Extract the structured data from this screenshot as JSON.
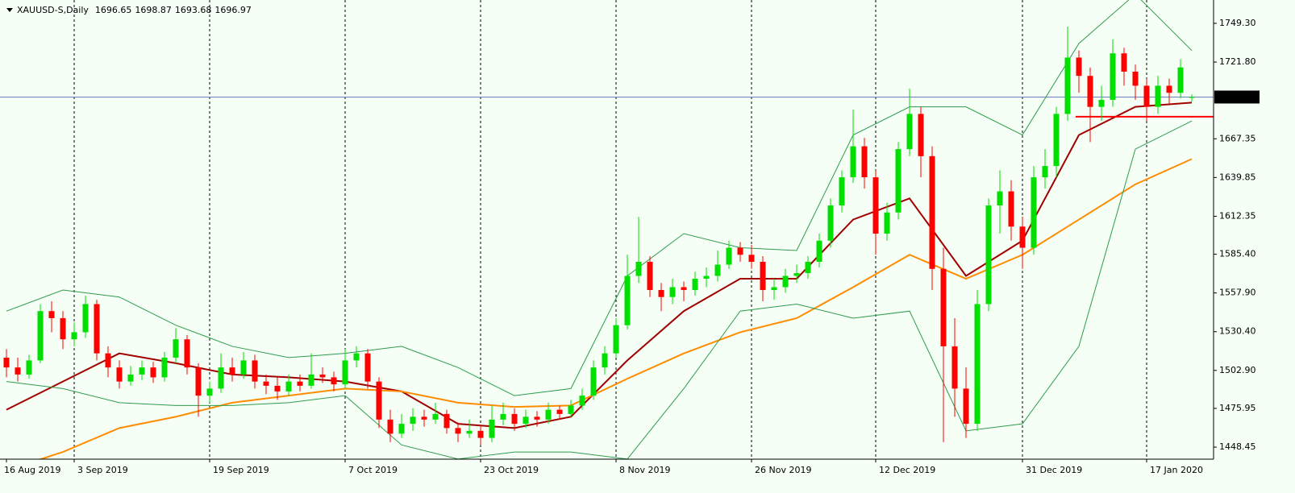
{
  "chart_data": {
    "type": "candlestick",
    "symbol": "XAUUSD-S,Daily",
    "ohlc": [
      [
        1512,
        1518,
        1498,
        1505
      ],
      [
        1505,
        1512,
        1495,
        1500
      ],
      [
        1500,
        1514,
        1497,
        1510
      ],
      [
        1510,
        1550,
        1508,
        1545
      ],
      [
        1545,
        1552,
        1530,
        1540
      ],
      [
        1540,
        1545,
        1518,
        1525
      ],
      [
        1525,
        1537,
        1520,
        1530
      ],
      [
        1530,
        1556,
        1526,
        1550
      ],
      [
        1550,
        1553,
        1510,
        1515
      ],
      [
        1515,
        1520,
        1498,
        1505
      ],
      [
        1505,
        1510,
        1490,
        1495
      ],
      [
        1495,
        1506,
        1492,
        1500
      ],
      [
        1500,
        1510,
        1496,
        1505
      ],
      [
        1505,
        1509,
        1494,
        1498
      ],
      [
        1498,
        1516,
        1495,
        1512
      ],
      [
        1512,
        1533,
        1508,
        1525
      ],
      [
        1525,
        1528,
        1500,
        1505
      ],
      [
        1505,
        1508,
        1470,
        1485
      ],
      [
        1485,
        1495,
        1480,
        1490
      ],
      [
        1490,
        1515,
        1487,
        1505
      ],
      [
        1505,
        1512,
        1495,
        1500
      ],
      [
        1500,
        1516,
        1497,
        1510
      ],
      [
        1510,
        1514,
        1490,
        1495
      ],
      [
        1495,
        1500,
        1486,
        1492
      ],
      [
        1492,
        1498,
        1482,
        1488
      ],
      [
        1488,
        1500,
        1485,
        1495
      ],
      [
        1495,
        1500,
        1488,
        1492
      ],
      [
        1492,
        1515,
        1490,
        1500
      ],
      [
        1500,
        1505,
        1494,
        1498
      ],
      [
        1498,
        1502,
        1488,
        1493
      ],
      [
        1493,
        1518,
        1490,
        1510
      ],
      [
        1510,
        1520,
        1505,
        1515
      ],
      [
        1515,
        1518,
        1490,
        1495
      ],
      [
        1495,
        1498,
        1462,
        1468
      ],
      [
        1468,
        1475,
        1452,
        1458
      ],
      [
        1458,
        1472,
        1455,
        1465
      ],
      [
        1465,
        1476,
        1460,
        1470
      ],
      [
        1470,
        1475,
        1463,
        1468
      ],
      [
        1468,
        1480,
        1465,
        1472
      ],
      [
        1472,
        1475,
        1458,
        1462
      ],
      [
        1462,
        1466,
        1452,
        1458
      ],
      [
        1458,
        1468,
        1455,
        1460
      ],
      [
        1460,
        1464,
        1450,
        1455
      ],
      [
        1455,
        1478,
        1452,
        1468
      ],
      [
        1468,
        1480,
        1464,
        1472
      ],
      [
        1472,
        1476,
        1460,
        1465
      ],
      [
        1465,
        1475,
        1462,
        1470
      ],
      [
        1470,
        1474,
        1463,
        1468
      ],
      [
        1468,
        1480,
        1465,
        1475
      ],
      [
        1475,
        1478,
        1468,
        1472
      ],
      [
        1472,
        1482,
        1470,
        1478
      ],
      [
        1478,
        1490,
        1475,
        1485
      ],
      [
        1485,
        1510,
        1482,
        1505
      ],
      [
        1505,
        1520,
        1500,
        1515
      ],
      [
        1515,
        1540,
        1512,
        1535
      ],
      [
        1535,
        1585,
        1532,
        1570
      ],
      [
        1570,
        1612,
        1565,
        1580
      ],
      [
        1580,
        1584,
        1555,
        1560
      ],
      [
        1560,
        1565,
        1545,
        1555
      ],
      [
        1555,
        1568,
        1550,
        1562
      ],
      [
        1562,
        1566,
        1552,
        1560
      ],
      [
        1560,
        1573,
        1556,
        1568
      ],
      [
        1568,
        1576,
        1562,
        1570
      ],
      [
        1570,
        1588,
        1566,
        1578
      ],
      [
        1578,
        1595,
        1575,
        1590
      ],
      [
        1590,
        1594,
        1580,
        1585
      ],
      [
        1585,
        1592,
        1575,
        1580
      ],
      [
        1580,
        1584,
        1552,
        1560
      ],
      [
        1560,
        1568,
        1553,
        1562
      ],
      [
        1562,
        1575,
        1558,
        1570
      ],
      [
        1570,
        1578,
        1565,
        1572
      ],
      [
        1572,
        1584,
        1568,
        1580
      ],
      [
        1580,
        1600,
        1576,
        1595
      ],
      [
        1595,
        1625,
        1590,
        1620
      ],
      [
        1620,
        1645,
        1615,
        1640
      ],
      [
        1640,
        1688,
        1636,
        1662
      ],
      [
        1662,
        1668,
        1632,
        1640
      ],
      [
        1640,
        1645,
        1585,
        1600
      ],
      [
        1600,
        1622,
        1595,
        1615
      ],
      [
        1615,
        1665,
        1610,
        1660
      ],
      [
        1660,
        1703,
        1655,
        1685
      ],
      [
        1685,
        1690,
        1640,
        1655
      ],
      [
        1655,
        1662,
        1560,
        1575
      ],
      [
        1575,
        1590,
        1452,
        1520
      ],
      [
        1520,
        1540,
        1470,
        1490
      ],
      [
        1490,
        1505,
        1455,
        1465
      ],
      [
        1465,
        1560,
        1460,
        1550
      ],
      [
        1550,
        1625,
        1545,
        1620
      ],
      [
        1620,
        1645,
        1600,
        1630
      ],
      [
        1630,
        1638,
        1595,
        1605
      ],
      [
        1605,
        1612,
        1575,
        1590
      ],
      [
        1590,
        1648,
        1585,
        1640
      ],
      [
        1640,
        1660,
        1632,
        1648
      ],
      [
        1648,
        1690,
        1640,
        1685
      ],
      [
        1685,
        1747,
        1680,
        1725
      ],
      [
        1725,
        1730,
        1700,
        1712
      ],
      [
        1712,
        1718,
        1665,
        1690
      ],
      [
        1690,
        1705,
        1680,
        1695
      ],
      [
        1695,
        1738,
        1690,
        1728
      ],
      [
        1728,
        1732,
        1705,
        1715
      ],
      [
        1715,
        1720,
        1695,
        1705
      ],
      [
        1705,
        1710,
        1680,
        1690
      ],
      [
        1690,
        1712,
        1685,
        1705
      ],
      [
        1705,
        1710,
        1692,
        1700
      ],
      [
        1700,
        1724,
        1696,
        1718
      ],
      [
        1696.65,
        1698.87,
        1693.68,
        1696.97
      ]
    ],
    "bull_color": "#00e000",
    "bear_color": "#ff0000",
    "ylim": [
      1439.9,
      1763.0
    ],
    "yticks": [
      {
        "value": 1749.3,
        "label": "1749.30"
      },
      {
        "value": 1721.8,
        "label": "1721.80"
      },
      {
        "value": 1667.35,
        "label": "1667.35"
      },
      {
        "value": 1639.85,
        "label": "1639.85"
      },
      {
        "value": 1612.35,
        "label": "1612.35"
      },
      {
        "value": 1585.4,
        "label": "1585.40"
      },
      {
        "value": 1557.9,
        "label": "1557.90"
      },
      {
        "value": 1530.4,
        "label": "1530.40"
      },
      {
        "value": 1502.9,
        "label": "1502.90"
      },
      {
        "value": 1475.95,
        "label": "1475.95"
      },
      {
        "value": 1448.45,
        "label": "1448.45"
      }
    ],
    "xticks": [
      {
        "value": 0,
        "label": "16 Aug 2019"
      },
      {
        "value": 6,
        "label": "3 Sep 2019"
      },
      {
        "value": 18,
        "label": "19 Sep 2019"
      },
      {
        "value": 30,
        "label": "7 Oct 2019"
      },
      {
        "value": 42,
        "label": "23 Oct 2019"
      },
      {
        "value": 54,
        "label": "8 Nov 2019"
      },
      {
        "value": 66,
        "label": "26 Nov 2019"
      },
      {
        "value": 77,
        "label": "12 Dec 2019"
      },
      {
        "value": 90,
        "label": "31 Dec 2019"
      },
      {
        "value": 101,
        "label": "17 Jan 2020"
      }
    ],
    "indicators": {
      "x": [
        0,
        5,
        10,
        15,
        20,
        25,
        30,
        35,
        40,
        45,
        50,
        55,
        60,
        65,
        70,
        75,
        80,
        85,
        90,
        95,
        100,
        105
      ],
      "series": [
        {
          "color": "#a00000",
          "values": [
            1475,
            1495,
            1515,
            1508,
            1500,
            1498,
            1495,
            1488,
            1465,
            1462,
            1470,
            1510,
            1545,
            1568,
            1568,
            1610,
            1625,
            1570,
            1595,
            1670,
            1690,
            1693
          ]
        },
        {
          "color": "#ff8c00",
          "values": [
            1432,
            1445,
            1462,
            1470,
            1480,
            1485,
            1490,
            1488,
            1480,
            1477,
            1478,
            1497,
            1515,
            1530,
            1540,
            1562,
            1585,
            1568,
            1585,
            1610,
            1635,
            1653
          ]
        },
        {
          "color": "#2e9b4e",
          "values": [
            1545,
            1560,
            1555,
            1535,
            1520,
            1512,
            1515,
            1520,
            1505,
            1485,
            1490,
            1570,
            1600,
            1590,
            1588,
            1670,
            1690,
            1690,
            1670,
            1735,
            1770,
            1730
          ]
        },
        {
          "color": "#2e9b4e",
          "values": [
            1495,
            1490,
            1480,
            1478,
            1478,
            1480,
            1485,
            1450,
            1440,
            1445,
            1445,
            1440,
            1490,
            1545,
            1550,
            1540,
            1545,
            1460,
            1465,
            1520,
            1660,
            1680
          ]
        }
      ]
    },
    "support_line": {
      "value": 1683,
      "from": 95,
      "color": "#ff0000"
    },
    "bid_line_color": "#6a7fbf"
  }
}
